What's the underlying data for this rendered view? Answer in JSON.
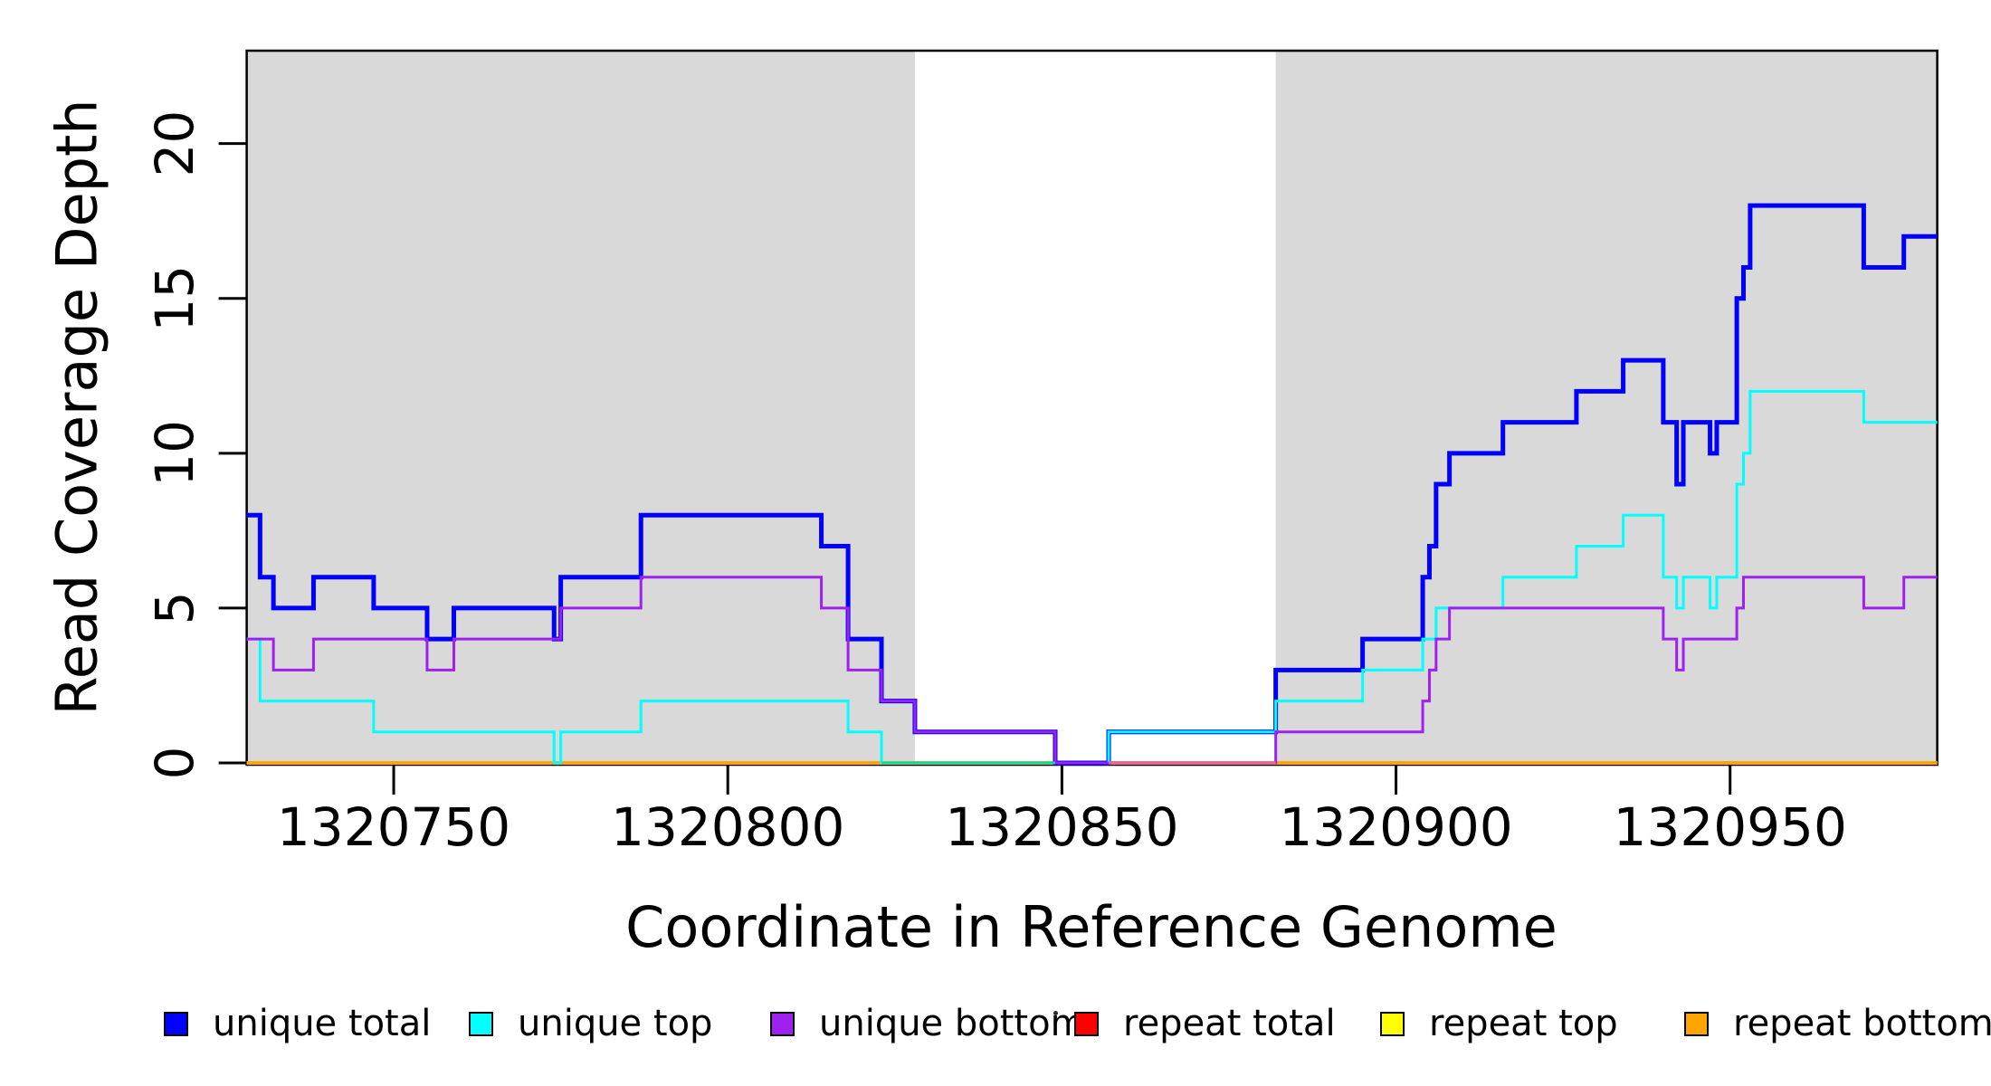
{
  "chart_data": {
    "type": "line",
    "step": "hv",
    "title": "",
    "xlabel": "Coordinate in Reference Genome",
    "ylabel": "Read Coverage Depth",
    "xlim": [
      1320728,
      1320981
    ],
    "ylim": [
      0,
      23
    ],
    "x_ticks": [
      1320750,
      1320800,
      1320850,
      1320900,
      1320950
    ],
    "y_ticks": [
      0,
      5,
      10,
      15,
      20
    ],
    "grid": false,
    "shade_color": "#D9D9D9",
    "shaded_regions": [
      {
        "from": 1320728,
        "to": 1320828
      },
      {
        "from": 1320882,
        "to": 1320981
      }
    ],
    "series": [
      {
        "name": "repeat total",
        "color": "#FF0000",
        "width": 3,
        "points": [
          [
            1320728,
            0
          ],
          [
            1320981,
            0
          ]
        ]
      },
      {
        "name": "repeat top",
        "color": "#FFFF00",
        "width": 3,
        "points": [
          [
            1320728,
            0
          ],
          [
            1320981,
            0
          ]
        ]
      },
      {
        "name": "repeat bottom",
        "color": "#FFA500",
        "width": 4,
        "points": [
          [
            1320728,
            0
          ],
          [
            1320981,
            0
          ]
        ]
      },
      {
        "name": "unique total",
        "color": "#0000FF",
        "width": 5,
        "points": [
          [
            1320728,
            8
          ],
          [
            1320730,
            6
          ],
          [
            1320732,
            5
          ],
          [
            1320738,
            6
          ],
          [
            1320747,
            5
          ],
          [
            1320755,
            4
          ],
          [
            1320759,
            5
          ],
          [
            1320774,
            4
          ],
          [
            1320775,
            6
          ],
          [
            1320787,
            8
          ],
          [
            1320814,
            7
          ],
          [
            1320818,
            4
          ],
          [
            1320823,
            2
          ],
          [
            1320828,
            1
          ],
          [
            1320849,
            0
          ],
          [
            1320857,
            1
          ],
          [
            1320882,
            3
          ],
          [
            1320895,
            4
          ],
          [
            1320904,
            6
          ],
          [
            1320905,
            7
          ],
          [
            1320906,
            9
          ],
          [
            1320908,
            10
          ],
          [
            1320916,
            11
          ],
          [
            1320927,
            12
          ],
          [
            1320934,
            13
          ],
          [
            1320940,
            11
          ],
          [
            1320942,
            9
          ],
          [
            1320943,
            11
          ],
          [
            1320947,
            10
          ],
          [
            1320948,
            11
          ],
          [
            1320951,
            15
          ],
          [
            1320952,
            16
          ],
          [
            1320953,
            18
          ],
          [
            1320970,
            16
          ],
          [
            1320976,
            17
          ],
          [
            1320981,
            17
          ]
        ]
      },
      {
        "name": "unique top",
        "color": "#00FFFF",
        "width": 3,
        "points": [
          [
            1320728,
            4
          ],
          [
            1320730,
            2
          ],
          [
            1320747,
            1
          ],
          [
            1320774,
            0
          ],
          [
            1320775,
            1
          ],
          [
            1320787,
            2
          ],
          [
            1320818,
            1
          ],
          [
            1320823,
            0
          ],
          [
            1320857,
            1
          ],
          [
            1320882,
            2
          ],
          [
            1320895,
            3
          ],
          [
            1320904,
            4
          ],
          [
            1320906,
            5
          ],
          [
            1320916,
            6
          ],
          [
            1320927,
            7
          ],
          [
            1320934,
            8
          ],
          [
            1320940,
            6
          ],
          [
            1320942,
            5
          ],
          [
            1320943,
            6
          ],
          [
            1320947,
            5
          ],
          [
            1320948,
            6
          ],
          [
            1320951,
            9
          ],
          [
            1320952,
            10
          ],
          [
            1320953,
            12
          ],
          [
            1320970,
            11
          ],
          [
            1320981,
            11
          ]
        ]
      },
      {
        "name": "unique bottom",
        "color": "#A020F0",
        "width": 3,
        "points": [
          [
            1320728,
            4
          ],
          [
            1320732,
            3
          ],
          [
            1320738,
            4
          ],
          [
            1320755,
            3
          ],
          [
            1320759,
            4
          ],
          [
            1320775,
            5
          ],
          [
            1320787,
            6
          ],
          [
            1320814,
            5
          ],
          [
            1320818,
            3
          ],
          [
            1320823,
            2
          ],
          [
            1320828,
            1
          ],
          [
            1320849,
            0
          ],
          [
            1320882,
            1
          ],
          [
            1320904,
            2
          ],
          [
            1320905,
            3
          ],
          [
            1320906,
            4
          ],
          [
            1320908,
            5
          ],
          [
            1320940,
            4
          ],
          [
            1320942,
            3
          ],
          [
            1320943,
            4
          ],
          [
            1320951,
            5
          ],
          [
            1320952,
            6
          ],
          [
            1320970,
            5
          ],
          [
            1320976,
            6
          ],
          [
            1320981,
            6
          ]
        ]
      }
    ],
    "zero_line_accents": [
      {
        "from": 1320823,
        "to": 1320849,
        "color": "#00DFA8",
        "width": 3
      },
      {
        "from": 1320857,
        "to": 1320882,
        "color": "#EE5FA5",
        "width": 3.5
      }
    ],
    "legend_position": "bottom"
  },
  "legend": {
    "items": [
      {
        "label": "unique total",
        "color": "#0000FF"
      },
      {
        "label": "unique top",
        "color": "#00FFFF"
      },
      {
        "label": "unique bottom",
        "color": "#A020F0"
      },
      {
        "label": "repeat total",
        "color": "#FF0000"
      },
      {
        "label": "repeat top",
        "color": "#FFFF00"
      },
      {
        "label": "repeat bottom",
        "color": "#FFA500"
      }
    ]
  },
  "colors": {
    "background": "#FFFFFF",
    "plot_shading": "#D9D9D9",
    "axis": "#000000"
  }
}
